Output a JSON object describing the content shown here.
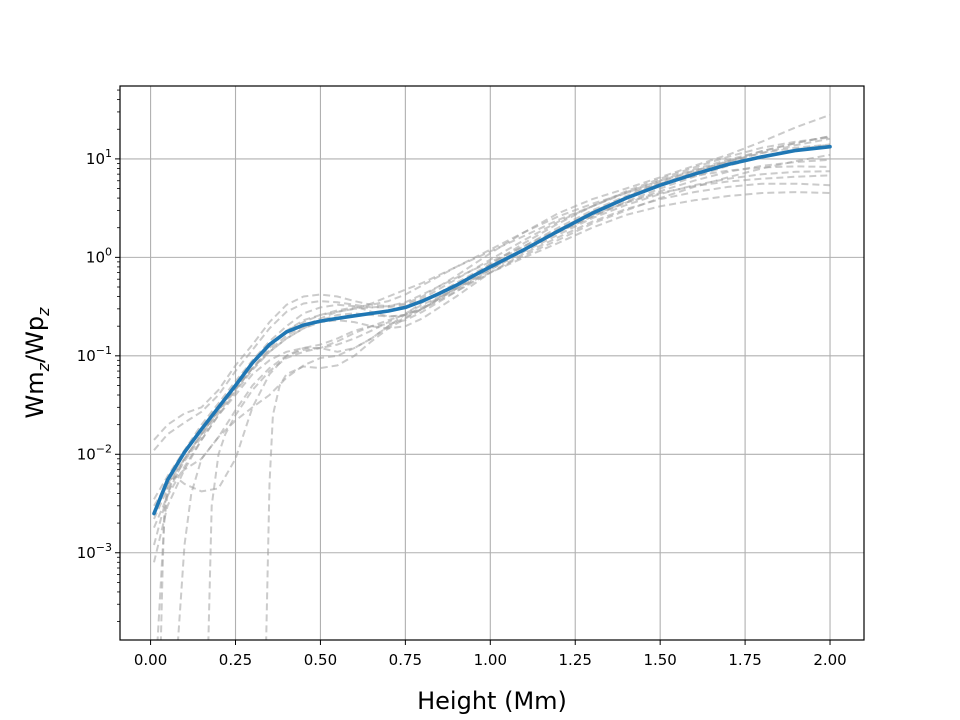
{
  "chart_data": {
    "type": "line",
    "title": "",
    "xlabel": "Height (Mm)",
    "ylabel": {
      "base1": "Wm",
      "sub1": "z",
      "sep": "/Wp",
      "sub2": "z"
    },
    "xlim": [
      -0.09,
      2.1
    ],
    "ylim": [
      0.00013,
      55
    ],
    "yscale": "log",
    "grid": true,
    "x_ticks": [
      0.0,
      0.25,
      0.5,
      0.75,
      1.0,
      1.25,
      1.5,
      1.75,
      2.0
    ],
    "x_tick_labels": [
      "0.00",
      "0.25",
      "0.50",
      "0.75",
      "1.00",
      "1.25",
      "1.50",
      "1.75",
      "2.00"
    ],
    "y_ticks": [
      {
        "value": 0.001,
        "base": "10",
        "exp": "−3"
      },
      {
        "value": 0.01,
        "base": "10",
        "exp": "−2"
      },
      {
        "value": 0.1,
        "base": "10",
        "exp": "−1"
      },
      {
        "value": 1,
        "base": "10",
        "exp": "0"
      },
      {
        "value": 10,
        "base": "10",
        "exp": "1"
      }
    ],
    "colors": {
      "mean": "#1f77b4",
      "samples": "#a0a0a0",
      "grid": "#b0b0b0"
    },
    "mean_series": {
      "x": [
        0.01,
        0.05,
        0.1,
        0.15,
        0.2,
        0.25,
        0.3,
        0.35,
        0.4,
        0.45,
        0.5,
        0.55,
        0.6,
        0.65,
        0.7,
        0.75,
        0.8,
        0.85,
        0.9,
        0.95,
        1.0,
        1.1,
        1.2,
        1.3,
        1.4,
        1.5,
        1.6,
        1.7,
        1.8,
        1.9,
        2.0
      ],
      "y": [
        0.0025,
        0.0055,
        0.0105,
        0.018,
        0.03,
        0.05,
        0.085,
        0.13,
        0.175,
        0.205,
        0.225,
        0.24,
        0.255,
        0.27,
        0.285,
        0.31,
        0.36,
        0.43,
        0.52,
        0.65,
        0.8,
        1.2,
        1.85,
        2.8,
        4.0,
        5.4,
        7.0,
        8.8,
        10.5,
        12.2,
        13.3
      ]
    },
    "sample_series": [
      {
        "x": [
          0.01,
          0.05,
          0.1,
          0.15,
          0.2,
          0.25,
          0.3,
          0.35,
          0.4,
          0.45,
          0.5,
          0.55,
          0.6,
          0.65,
          0.7,
          0.75,
          0.8,
          0.9,
          1.0,
          1.1,
          1.2,
          1.3,
          1.4,
          1.5,
          1.6,
          1.7,
          1.8,
          1.9,
          2.0
        ],
        "y": [
          0.014,
          0.02,
          0.026,
          0.03,
          0.045,
          0.08,
          0.13,
          0.22,
          0.33,
          0.4,
          0.42,
          0.4,
          0.36,
          0.33,
          0.32,
          0.34,
          0.4,
          0.65,
          1.1,
          1.8,
          2.8,
          3.9,
          5.0,
          6.5,
          8.5,
          11.0,
          15.0,
          21.0,
          28.0
        ]
      },
      {
        "x": [
          0.01,
          0.05,
          0.1,
          0.15,
          0.2,
          0.25,
          0.3,
          0.35,
          0.4,
          0.45,
          0.5,
          0.55,
          0.6,
          0.65,
          0.7,
          0.75,
          0.8,
          0.9,
          1.0,
          1.1,
          1.2,
          1.3,
          1.4,
          1.5,
          1.6,
          1.7,
          1.8,
          1.9,
          2.0
        ],
        "y": [
          0.011,
          0.016,
          0.021,
          0.027,
          0.04,
          0.07,
          0.115,
          0.19,
          0.28,
          0.34,
          0.36,
          0.35,
          0.33,
          0.31,
          0.31,
          0.33,
          0.38,
          0.6,
          0.95,
          1.5,
          2.3,
          3.3,
          4.6,
          6.0,
          7.6,
          9.3,
          11.5,
          13.8,
          16.0
        ]
      },
      {
        "x": [
          0.01,
          0.05,
          0.1,
          0.15,
          0.2,
          0.25,
          0.3,
          0.35,
          0.4,
          0.45,
          0.5,
          0.55,
          0.6,
          0.65,
          0.7,
          0.75,
          0.8,
          0.9,
          1.0,
          1.1,
          1.2,
          1.3,
          1.4,
          1.5,
          1.6,
          1.7,
          1.8,
          1.9,
          2.0
        ],
        "y": [
          0.0035,
          0.006,
          0.011,
          0.02,
          0.033,
          0.055,
          0.09,
          0.14,
          0.2,
          0.27,
          0.31,
          0.33,
          0.32,
          0.28,
          0.25,
          0.26,
          0.3,
          0.48,
          0.78,
          1.2,
          1.8,
          2.6,
          3.6,
          4.7,
          6.0,
          7.4,
          8.5,
          9.3,
          9.8
        ]
      },
      {
        "x": [
          0.01,
          0.05,
          0.1,
          0.15,
          0.2,
          0.25,
          0.3,
          0.35,
          0.4,
          0.45,
          0.5,
          0.55,
          0.6,
          0.65,
          0.7,
          0.75,
          0.8,
          0.9,
          1.0,
          1.1,
          1.2,
          1.3,
          1.4,
          1.5,
          1.6,
          1.7,
          1.8,
          1.9,
          2.0
        ],
        "y": [
          0.0012,
          0.004,
          0.009,
          0.016,
          0.028,
          0.047,
          0.075,
          0.11,
          0.15,
          0.19,
          0.22,
          0.23,
          0.22,
          0.2,
          0.19,
          0.2,
          0.24,
          0.4,
          0.7,
          1.1,
          1.6,
          2.3,
          3.1,
          3.9,
          4.6,
          5.2,
          5.6,
          5.6,
          5.4
        ]
      },
      {
        "x": [
          0.01,
          0.05,
          0.1,
          0.15,
          0.2,
          0.25,
          0.3,
          0.35,
          0.4,
          0.45,
          0.5,
          0.55,
          0.6,
          0.65,
          0.7,
          0.75,
          0.8,
          0.9,
          1.0,
          1.1,
          1.2,
          1.3,
          1.4,
          1.5,
          1.6,
          1.7,
          1.8,
          1.9,
          2.0
        ],
        "y": [
          0.0022,
          0.0045,
          0.0085,
          0.015,
          0.026,
          0.045,
          0.075,
          0.115,
          0.16,
          0.2,
          0.24,
          0.28,
          0.3,
          0.31,
          0.32,
          0.35,
          0.42,
          0.62,
          0.9,
          1.3,
          1.9,
          2.7,
          3.6,
          4.5,
          5.3,
          5.9,
          6.3,
          6.6,
          6.8
        ]
      },
      {
        "x": [
          0.01,
          0.05,
          0.1,
          0.15,
          0.2,
          0.25,
          0.3,
          0.35,
          0.4,
          0.45,
          0.5,
          0.55,
          0.6,
          0.65,
          0.7,
          0.75,
          0.8,
          0.9,
          1.0,
          1.1,
          1.2,
          1.3,
          1.4,
          1.5,
          1.6,
          1.7,
          1.8,
          1.9,
          2.0
        ],
        "y": [
          0.003,
          0.005,
          0.007,
          0.009,
          0.015,
          0.028,
          0.05,
          0.075,
          0.1,
          0.115,
          0.12,
          0.13,
          0.15,
          0.18,
          0.22,
          0.27,
          0.33,
          0.48,
          0.7,
          1.0,
          1.4,
          2.0,
          2.7,
          3.3,
          3.8,
          4.2,
          4.5,
          4.6,
          4.5
        ]
      },
      {
        "x": [
          0.01,
          0.05,
          0.1,
          0.15,
          0.2,
          0.25,
          0.3,
          0.35,
          0.4,
          0.45,
          0.5,
          0.55,
          0.6,
          0.65,
          0.7,
          0.75,
          0.8,
          0.9,
          1.0,
          1.1,
          1.2,
          1.3,
          1.4,
          1.5,
          1.6,
          1.7,
          1.8,
          1.9,
          2.0
        ],
        "y": [
          0.0008,
          0.003,
          0.007,
          0.014,
          0.025,
          0.04,
          0.065,
          0.09,
          0.11,
          0.12,
          0.13,
          0.15,
          0.18,
          0.2,
          0.21,
          0.23,
          0.28,
          0.45,
          0.75,
          1.2,
          1.9,
          2.9,
          4.1,
          5.6,
          7.3,
          9.4,
          12.0,
          14.5,
          17.0
        ]
      },
      {
        "x": [
          0.01,
          0.05,
          0.1,
          0.15,
          0.2,
          0.25,
          0.3,
          0.35,
          0.4,
          0.45,
          0.5,
          0.55,
          0.6,
          0.65,
          0.7,
          0.75,
          0.8,
          0.9,
          1.0,
          1.1,
          1.2,
          1.3,
          1.4,
          1.5,
          1.6,
          1.7,
          1.8,
          1.9,
          2.0
        ],
        "y": [
          0.0018,
          0.0038,
          0.0075,
          0.014,
          0.025,
          0.043,
          0.072,
          0.11,
          0.15,
          0.19,
          0.23,
          0.26,
          0.27,
          0.26,
          0.25,
          0.26,
          0.31,
          0.5,
          0.85,
          1.4,
          2.2,
          3.3,
          4.7,
          6.3,
          8.2,
          10.5,
          13.0,
          15.0,
          16.5
        ]
      },
      {
        "x": [
          0.01,
          0.05,
          0.1,
          0.15,
          0.2,
          0.25,
          0.3,
          0.35,
          0.4,
          0.45,
          0.5,
          0.55,
          0.6,
          0.65,
          0.7,
          0.75,
          0.8,
          0.9,
          1.0,
          1.1,
          1.2,
          1.3,
          1.4,
          1.5,
          1.6,
          1.7,
          1.8,
          1.9,
          2.0
        ],
        "y": [
          0.0025,
          0.005,
          0.009,
          0.016,
          0.028,
          0.05,
          0.085,
          0.13,
          0.18,
          0.22,
          0.26,
          0.29,
          0.31,
          0.33,
          0.36,
          0.42,
          0.52,
          0.8,
          1.2,
          1.8,
          2.6,
          3.5,
          4.5,
          5.6,
          6.7,
          7.6,
          8.2,
          8.4,
          8.3
        ]
      },
      {
        "x": [
          0.02,
          0.04,
          0.05,
          0.07,
          0.1,
          0.15,
          0.2,
          0.25,
          0.3,
          0.35,
          0.4,
          0.45,
          0.5,
          0.55,
          0.6,
          0.65,
          0.7,
          0.8,
          0.9,
          1.0,
          1.1,
          1.2,
          1.3,
          1.4,
          1.5,
          1.6,
          1.7,
          1.8,
          1.9,
          2.0
        ],
        "y": [
          0.00012,
          0.002,
          0.004,
          0.006,
          0.005,
          0.0042,
          0.0045,
          0.009,
          0.03,
          0.065,
          0.1,
          0.12,
          0.12,
          0.11,
          0.12,
          0.15,
          0.2,
          0.35,
          0.55,
          0.85,
          1.3,
          2.0,
          3.0,
          4.2,
          5.8,
          7.5,
          9.5,
          11.5,
          13.0,
          14.0
        ]
      },
      {
        "x": [
          0.08,
          0.1,
          0.12,
          0.15,
          0.2,
          0.25,
          0.3,
          0.35,
          0.4,
          0.45,
          0.5,
          0.55,
          0.6,
          0.65,
          0.7,
          0.8,
          0.9,
          1.0,
          1.1,
          1.2,
          1.3,
          1.4,
          1.5,
          1.6,
          1.7,
          1.8,
          1.9,
          2.0
        ],
        "y": [
          0.00012,
          0.0012,
          0.004,
          0.009,
          0.015,
          0.022,
          0.03,
          0.04,
          0.06,
          0.08,
          0.095,
          0.1,
          0.12,
          0.15,
          0.2,
          0.3,
          0.48,
          0.75,
          1.15,
          1.7,
          2.5,
          3.4,
          4.4,
          5.4,
          6.3,
          7.0,
          7.4,
          7.5
        ]
      },
      {
        "x": [
          0.17,
          0.18,
          0.2,
          0.22,
          0.25,
          0.3,
          0.35,
          0.4,
          0.45,
          0.5,
          0.55,
          0.6,
          0.65,
          0.7,
          0.8,
          0.9,
          1.0,
          1.1,
          1.2,
          1.3,
          1.4,
          1.5,
          1.6,
          1.7,
          1.8,
          1.9,
          2.0
        ],
        "y": [
          0.00012,
          0.003,
          0.01,
          0.016,
          0.025,
          0.045,
          0.07,
          0.095,
          0.11,
          0.12,
          0.14,
          0.17,
          0.2,
          0.23,
          0.3,
          0.45,
          0.7,
          1.05,
          1.5,
          2.2,
          3.0,
          4.0,
          5.2,
          6.5,
          8.0,
          9.5,
          11.0
        ]
      },
      {
        "x": [
          0.34,
          0.35,
          0.36,
          0.38,
          0.4,
          0.45,
          0.5,
          0.55,
          0.6,
          0.65,
          0.7,
          0.8,
          0.9,
          1.0,
          1.1,
          1.2,
          1.3,
          1.4,
          1.5,
          1.6,
          1.7,
          1.8,
          1.9,
          2.0
        ],
        "y": [
          0.00012,
          0.005,
          0.025,
          0.05,
          0.065,
          0.078,
          0.075,
          0.08,
          0.1,
          0.14,
          0.19,
          0.3,
          0.5,
          0.8,
          1.2,
          1.8,
          2.6,
          3.7,
          5.0,
          6.6,
          8.5,
          10.5,
          12.5,
          14.0
        ]
      },
      {
        "x": [
          0.03,
          0.035,
          0.04,
          0.05,
          0.1,
          0.15,
          0.2,
          0.25,
          0.3,
          0.35,
          0.4,
          0.45,
          0.5,
          0.55,
          0.6,
          0.65,
          0.7,
          0.8,
          0.9,
          1.0,
          1.1,
          1.2,
          1.3,
          1.4,
          1.5,
          1.6,
          1.7,
          1.8,
          1.9,
          2.0
        ],
        "y": [
          0.00012,
          0.0006,
          0.0025,
          0.005,
          0.009,
          0.016,
          0.028,
          0.046,
          0.075,
          0.12,
          0.18,
          0.23,
          0.26,
          0.28,
          0.3,
          0.34,
          0.4,
          0.55,
          0.8,
          1.15,
          1.65,
          2.4,
          3.3,
          4.5,
          6.0,
          7.8,
          9.8,
          12.0,
          14.5,
          17.0
        ]
      }
    ]
  }
}
